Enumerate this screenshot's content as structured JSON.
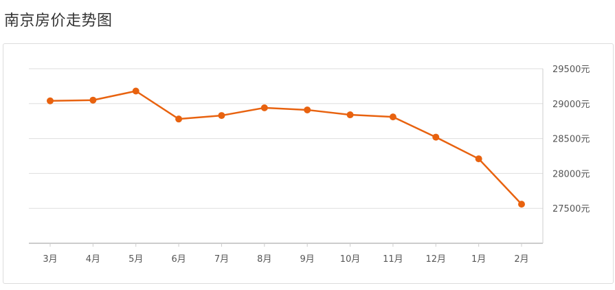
{
  "page": {
    "title": "南京房价走势图"
  },
  "colors": {
    "line": "#e8620f",
    "grid": "#dddddd",
    "axis": "#cccccc",
    "text": "#555555"
  },
  "chart_data": {
    "type": "line",
    "title": "南京房价走势图",
    "categories": [
      "3月",
      "4月",
      "5月",
      "6月",
      "7月",
      "8月",
      "9月",
      "10月",
      "11月",
      "12月",
      "1月",
      "2月"
    ],
    "series": [
      {
        "values": [
          29040,
          29050,
          29180,
          28780,
          28830,
          28940,
          28910,
          28840,
          28810,
          28520,
          28210,
          27560
        ]
      }
    ],
    "ylim": [
      27000,
      29500
    ],
    "y_ticks": [
      29500,
      29000,
      28500,
      28000,
      27500
    ],
    "y_tick_labels": [
      "29500元",
      "29000元",
      "28500元",
      "28000元",
      "27500元"
    ],
    "y_axis_position": "right",
    "grid": true,
    "legend": "none"
  }
}
